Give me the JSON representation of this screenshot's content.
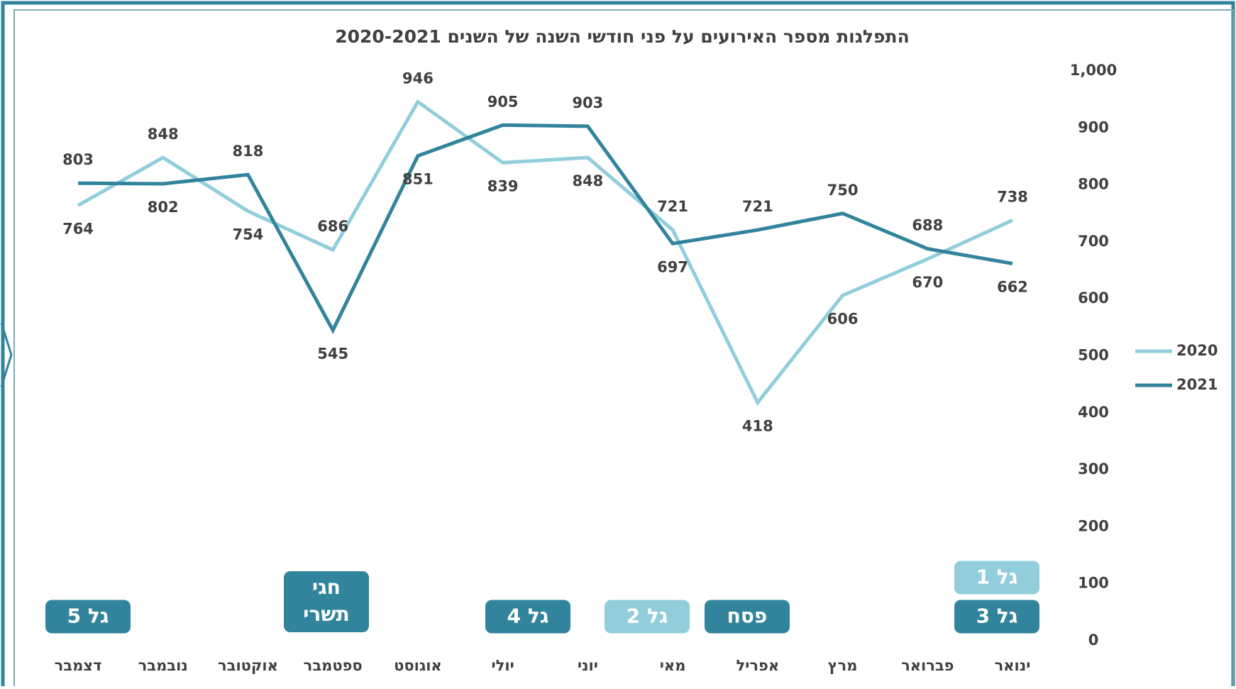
{
  "chart_data": {
    "type": "line",
    "title": "התפלגות מספר האירועים על פני חודשי השנה של השנים 2020-2021",
    "categories": [
      "ינואר",
      "פברואר",
      "מרץ",
      "אפריל",
      "מאי",
      "יוני",
      "יולי",
      "אוגוסט",
      "ספטמבר",
      "אוקטובר",
      "נובמבר",
      "דצמבר"
    ],
    "series": [
      {
        "name": "2020",
        "color": "#92cddc",
        "values": [
          738,
          670,
          606,
          418,
          721,
          848,
          839,
          946,
          686,
          754,
          848,
          764
        ]
      },
      {
        "name": "2021",
        "color": "#31849b",
        "values": [
          662,
          688,
          750,
          721,
          697,
          903,
          905,
          851,
          545,
          818,
          802,
          803
        ]
      }
    ],
    "ylim": [
      0,
      1000
    ],
    "yticks": [
      0,
      100,
      200,
      300,
      400,
      500,
      600,
      700,
      800,
      900,
      {
        "value": 1000,
        "label": "1,000"
      }
    ],
    "grid": false,
    "legend": "right",
    "annotations": [
      {
        "lines": [
          "גל 1"
        ],
        "color": "#92cddc"
      },
      {
        "lines": [
          "גל 3"
        ],
        "color": "#31849b"
      },
      {
        "lines": [
          "פסח"
        ],
        "color": "#31849b"
      },
      {
        "lines": [
          "גל 2"
        ],
        "color": "#92cddc"
      },
      {
        "lines": [
          "גל 4"
        ],
        "color": "#31849b"
      },
      {
        "lines": [
          "חגי",
          "תשרי"
        ],
        "color": "#31849b"
      },
      {
        "lines": [
          "גל 5"
        ],
        "color": "#31849b"
      }
    ]
  }
}
